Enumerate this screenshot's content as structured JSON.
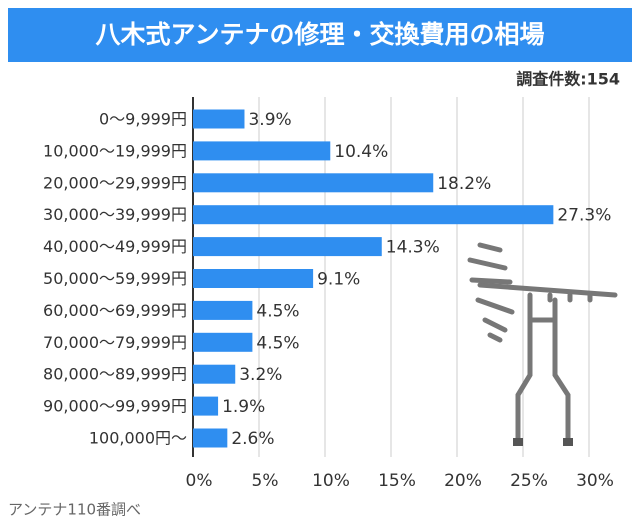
{
  "chart_data": {
    "type": "hbar",
    "title": "八木式アンテナの修理・交換費用の相場",
    "note": "調査件数:154",
    "source": "アンテナ110番調べ",
    "categories": [
      "0〜9,999円",
      "10,000〜19,999円",
      "20,000〜29,999円",
      "30,000〜39,999円",
      "40,000〜49,999円",
      "50,000〜59,999円",
      "60,000〜69,999円",
      "70,000〜79,999円",
      "80,000〜89,999円",
      "90,000〜99,999円",
      "100,000円〜"
    ],
    "values": [
      3.9,
      10.4,
      18.2,
      27.3,
      14.3,
      9.1,
      4.5,
      4.5,
      3.2,
      1.9,
      2.6
    ],
    "value_labels": [
      "3.9%",
      "10.4%",
      "18.2%",
      "27.3%",
      "14.3%",
      "9.1%",
      "4.5%",
      "4.5%",
      "3.2%",
      "1.9%",
      "2.6%"
    ],
    "color": "#2f8ef0",
    "xlim": [
      0,
      30
    ],
    "xticks": [
      {
        "value": 0,
        "label": "0%"
      },
      {
        "value": 5,
        "label": "5%"
      },
      {
        "value": 10,
        "label": "10%"
      },
      {
        "value": 15,
        "label": "15%"
      },
      {
        "value": 20,
        "label": "20%"
      },
      {
        "value": 25,
        "label": "25%"
      },
      {
        "value": 30,
        "label": "30%"
      }
    ],
    "grid": true
  }
}
